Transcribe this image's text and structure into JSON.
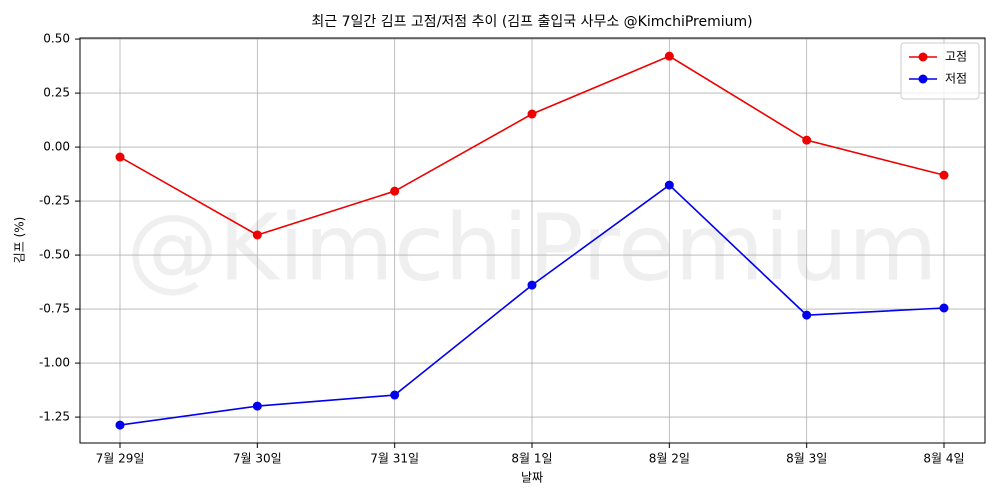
{
  "chart_data": {
    "type": "line",
    "title": "최근 7일간 김프 고점/저점 추이 (김프 출입국 사무소 @KimchiPremium)",
    "watermark": "@KimchiPremium",
    "x_label": "날짜",
    "y_label": "김프 (%)",
    "categories": [
      "7월 29일",
      "7월 30일",
      "7월 31일",
      "8월 1일",
      "8월 2일",
      "8월 3일",
      "8월 4일"
    ],
    "series": [
      {
        "name": "고점",
        "color": "#ee0000",
        "values": [
          -0.046,
          -0.407,
          -0.204,
          0.153,
          0.421,
          0.032,
          -0.13
        ]
      },
      {
        "name": "저점",
        "color": "#0000ee",
        "values": [
          -1.287,
          -1.199,
          -1.148,
          -0.639,
          -0.176,
          -0.778,
          -0.745
        ]
      }
    ],
    "ylim": [
      -1.37,
      0.505
    ],
    "yticks": [
      {
        "value": 0.5,
        "label": "0.50"
      },
      0.25,
      {
        "value": 0,
        "label": "0.00"
      },
      -0.25,
      {
        "value": -0.5,
        "label": "-0.50"
      },
      -0.75,
      {
        "value": -1,
        "label": "-1.00"
      },
      -1.25
    ],
    "grid": true,
    "legend": "upper right"
  }
}
